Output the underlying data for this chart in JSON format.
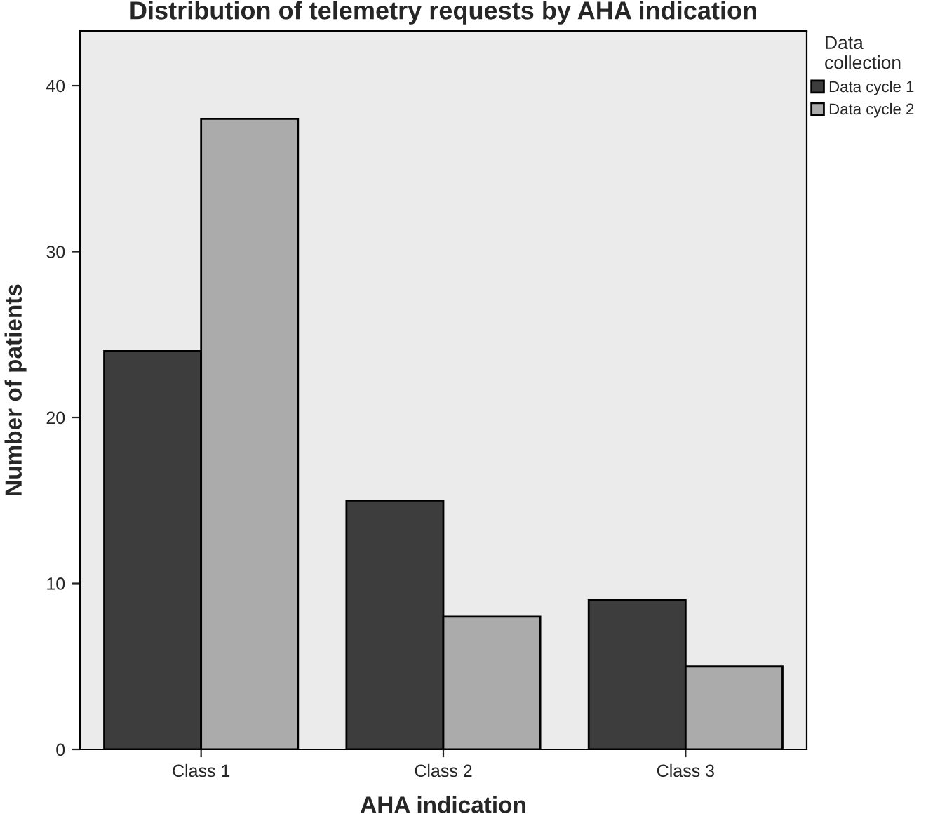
{
  "chart_data": {
    "type": "bar",
    "title": "Distribution of telemetry requests by AHA indication",
    "xlabel": "AHA indication",
    "ylabel": "Number of patients",
    "legend_title": "Data collection",
    "categories": [
      "Class 1",
      "Class 2",
      "Class 3"
    ],
    "series": [
      {
        "name": "Data cycle 1",
        "color": "#3d3d3d",
        "values": [
          24,
          15,
          9
        ]
      },
      {
        "name": "Data cycle 2",
        "color": "#ababab",
        "values": [
          38,
          8,
          5
        ]
      }
    ],
    "ylim": [
      0,
      43.3
    ],
    "yticks": [
      0,
      10,
      20,
      30,
      40
    ],
    "grid": false,
    "legend": "top right"
  }
}
